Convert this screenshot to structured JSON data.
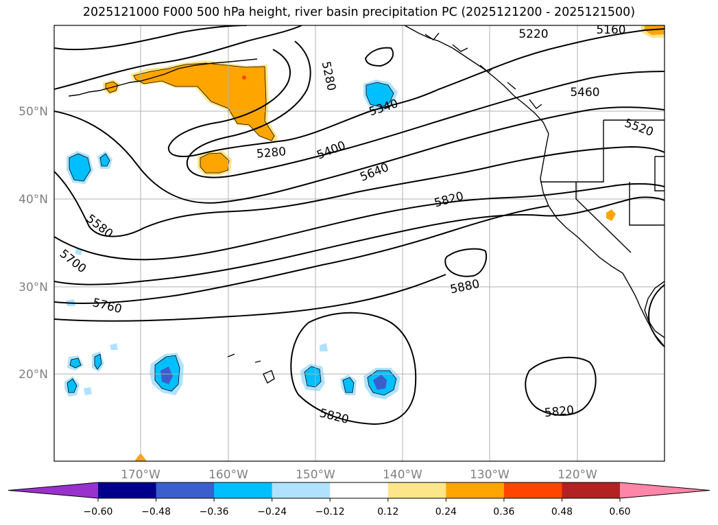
{
  "title": "2025121000 F000 500 hPa height, river basin precipitation PC (2025121200 - 2025121500)",
  "map": {
    "lat_labels": [
      "50°N",
      "40°N",
      "30°N",
      "20°N"
    ],
    "lon_labels": [
      "170°W",
      "160°W",
      "150°W",
      "140°W",
      "130°W",
      "120°W"
    ],
    "contour_labels": [
      "5220",
      "5160",
      "5280",
      "5340",
      "5460",
      "5520",
      "5280",
      "5400",
      "5640",
      "5820",
      "5580",
      "5700",
      "5760",
      "5880",
      "5820",
      "5820"
    ]
  },
  "colorbar": {
    "ticks": [
      "−0.60",
      "−0.48",
      "−0.36",
      "−0.24",
      "−0.12",
      "0.12",
      "0.24",
      "0.36",
      "0.48",
      "0.60"
    ],
    "colors": [
      "#9932cc",
      "#00008b",
      "#3a5fcd",
      "#00bfff",
      "#b0e2ff",
      "#ffffff",
      "#fde68a",
      "#ffa500",
      "#ff4500",
      "#b22222",
      "#ff86a8"
    ]
  }
}
